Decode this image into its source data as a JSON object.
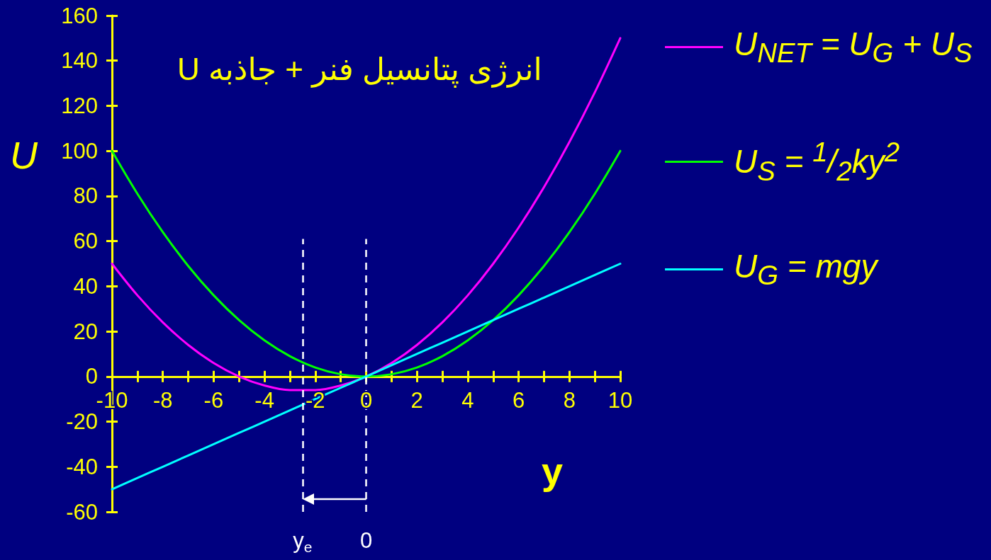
{
  "chart_data": {
    "type": "line",
    "title": "انرژی پتانسیل فنر + جاذبه U",
    "xlabel": "y",
    "ylabel": "U",
    "x": [
      -10,
      -9,
      -8,
      -7,
      -6,
      -5,
      -4,
      -3,
      -2,
      -1,
      0,
      1,
      2,
      3,
      4,
      5,
      6,
      7,
      8,
      9,
      10
    ],
    "series": [
      {
        "name": "U$_{NET}$ = U$_{G}$ + U$_{S}$",
        "color": "#ff00ff",
        "values": [
          50,
          36,
          24,
          14,
          6,
          0,
          -4,
          -6,
          -6,
          -4,
          0,
          6,
          14,
          24,
          36,
          50,
          66,
          84,
          104,
          126,
          150
        ]
      },
      {
        "name": "U$_{S}$ = $^{1}$/$_{2}$ky$^{2}$",
        "color": "#00ff00",
        "values": [
          100,
          81,
          64,
          49,
          36,
          25,
          16,
          9,
          4,
          1,
          0,
          1,
          4,
          9,
          16,
          25,
          36,
          49,
          64,
          81,
          100
        ]
      },
      {
        "name": "U$_{G}$ = mgy",
        "color": "#00ffff",
        "values": [
          -50,
          -45,
          -40,
          -35,
          -30,
          -25,
          -20,
          -15,
          -10,
          -5,
          0,
          5,
          10,
          15,
          20,
          25,
          30,
          35,
          40,
          45,
          50
        ]
      }
    ],
    "xlim": [
      -10,
      10
    ],
    "xticks": [
      -10,
      {
        "value": -9,
        "label": null
      },
      -8,
      {
        "value": -7,
        "label": null
      },
      -6,
      {
        "value": -5,
        "label": null
      },
      -4,
      {
        "value": -3,
        "label": null
      },
      -2,
      {
        "value": -1,
        "label": null
      },
      0,
      {
        "value": 1,
        "label": null
      },
      2,
      {
        "value": 3,
        "label": null
      },
      4,
      {
        "value": 5,
        "label": null
      },
      6,
      {
        "value": 7,
        "label": null
      },
      8,
      {
        "value": 9,
        "label": null
      },
      10
    ],
    "ylim": [
      -60,
      160
    ],
    "yticks": [
      -60,
      -40,
      -20,
      0,
      20,
      40,
      60,
      80,
      100,
      120,
      140,
      160
    ],
    "ref_lines": [
      {
        "axis": "x",
        "value": -2.5,
        "label": "y$_{e}$",
        "color": "#ffffff",
        "line_style": "dashed"
      },
      {
        "axis": "x",
        "value": 0,
        "label": "0",
        "color": "#ffffff",
        "line_style": "dashed"
      }
    ],
    "legend": "right",
    "marker": "none"
  }
}
